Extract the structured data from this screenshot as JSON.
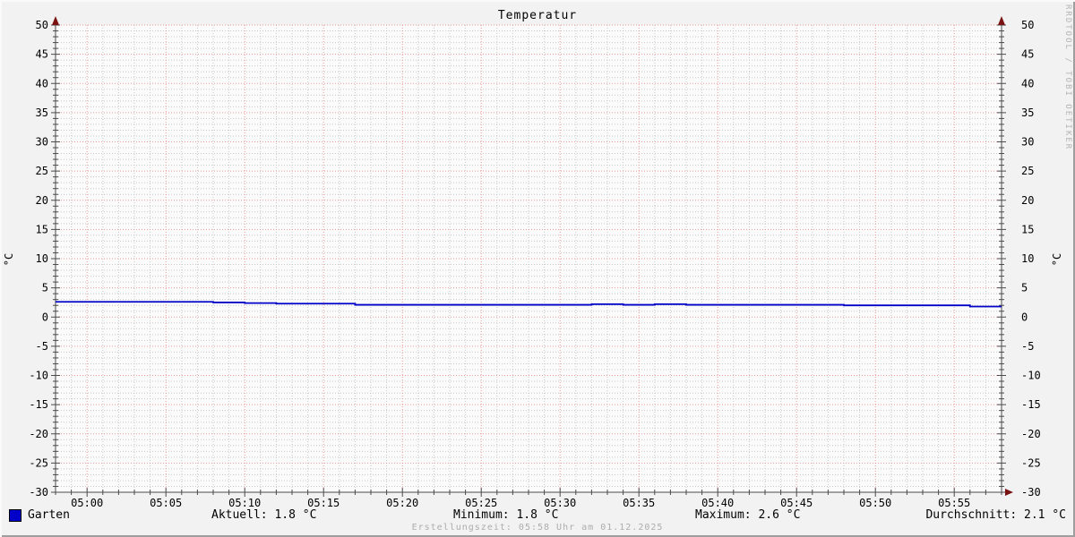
{
  "title": "Temperatur",
  "watermark": "RRDTOOL / TOBI OETIKER",
  "axis_units": {
    "left": "°C",
    "right": "°C"
  },
  "legend": {
    "label": "Garten",
    "swatch_color": "#0000c8"
  },
  "stats_bar": {
    "aktuell": "Aktuell: 1.8 °C",
    "minimum": "Minimum: 1.8 °C",
    "maximum": "Maximum: 2.6 °C",
    "durchschnitt": "Durchschnitt: 2.1 °C"
  },
  "footer": "Erstellungszeit: 05:58 Uhr am 01.12.2025",
  "colors": {
    "background": "#f2f2f2",
    "canvas": "#fbfbfb",
    "grid_major": "#e89a9a",
    "grid_minor": "#c8c8c8",
    "axis": "#4a4a4a",
    "arrow": "#7a1212",
    "line": "#0000c8",
    "text": "#000000",
    "muted": "#adadad"
  },
  "chart_data": {
    "type": "line",
    "title": "Temperatur",
    "xlabel": "",
    "ylabel": "°C",
    "ylim": [
      -30,
      50
    ],
    "y_tick_major": 5,
    "y_tick_minor": 1,
    "x_start": "04:58",
    "x_end": "05:58",
    "x_minor_step_minutes": 1,
    "x_ticks": [
      "05:00",
      "05:05",
      "05:10",
      "05:15",
      "05:20",
      "05:25",
      "05:30",
      "05:35",
      "05:40",
      "05:45",
      "05:50",
      "05:55"
    ],
    "grid": true,
    "legend_position": "bottom",
    "series": [
      {
        "name": "Garten",
        "color": "#0000c8",
        "points": [
          [
            "04:58",
            2.6
          ],
          [
            "05:08",
            2.5
          ],
          [
            "05:10",
            2.4
          ],
          [
            "05:12",
            2.3
          ],
          [
            "05:17",
            2.1
          ],
          [
            "05:32",
            2.2
          ],
          [
            "05:34",
            2.1
          ],
          [
            "05:36",
            2.2
          ],
          [
            "05:38",
            2.1
          ],
          [
            "05:48",
            2.0
          ],
          [
            "05:56",
            1.8
          ],
          [
            "05:58",
            1.8
          ]
        ]
      }
    ],
    "stats": {
      "aktuell_c": 1.8,
      "minimum_c": 1.8,
      "maximum_c": 2.6,
      "durchschnitt_c": 2.1
    }
  }
}
